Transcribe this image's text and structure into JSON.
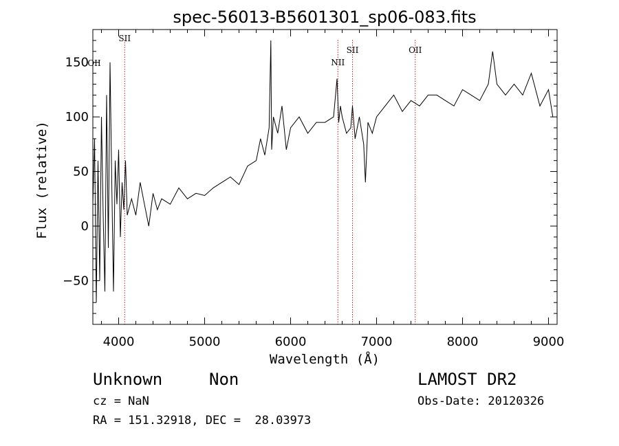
{
  "chart_data": {
    "type": "line",
    "title": "spec-56013-B5601301_sp06-083.fits",
    "xlabel": "Wavelength (Å)",
    "ylabel": "Flux (relative)",
    "xlim": [
      3700,
      9100
    ],
    "ylim": [
      -90,
      180
    ],
    "xticks": [
      4000,
      5000,
      6000,
      7000,
      8000,
      9000
    ],
    "yticks": [
      -50,
      0,
      50,
      100,
      150
    ],
    "xtick_labels": [
      "4000",
      "5000",
      "6000",
      "7000",
      "8000",
      "9000"
    ],
    "ytick_labels": [
      "−50",
      "0",
      "50",
      "100",
      "150"
    ],
    "grid": false,
    "series": [
      {
        "x": [
          3700,
          3720,
          3740,
          3760,
          3780,
          3800,
          3820,
          3840,
          3860,
          3880,
          3900,
          3920,
          3940,
          3960,
          3980,
          4000,
          4020,
          4040,
          4060,
          4080,
          4100,
          4150,
          4200,
          4250,
          4300,
          4350,
          4400,
          4450,
          4500,
          4600,
          4700,
          4800,
          4900,
          5000,
          5100,
          5200,
          5300,
          5400,
          5500,
          5600,
          5650,
          5700,
          5750,
          5770,
          5780,
          5800,
          5850,
          5900,
          5950,
          6000,
          6100,
          6200,
          6300,
          6400,
          6500,
          6540,
          6560,
          6580,
          6600,
          6650,
          6700,
          6720,
          6750,
          6800,
          6850,
          6870,
          6900,
          6950,
          7000,
          7100,
          7200,
          7300,
          7400,
          7500,
          7600,
          7700,
          7800,
          7900,
          8000,
          8100,
          8200,
          8300,
          8350,
          8400,
          8500,
          8600,
          8700,
          8800,
          8900,
          9000,
          9050
        ],
        "y": [
          20,
          80,
          -70,
          60,
          -50,
          100,
          10,
          -60,
          120,
          -20,
          150,
          40,
          -60,
          60,
          20,
          70,
          -10,
          40,
          15,
          60,
          10,
          25,
          10,
          40,
          20,
          0,
          30,
          15,
          25,
          20,
          35,
          25,
          30,
          28,
          35,
          40,
          45,
          38,
          55,
          60,
          80,
          65,
          90,
          170,
          70,
          100,
          85,
          110,
          70,
          90,
          100,
          85,
          95,
          95,
          100,
          135,
          95,
          110,
          100,
          85,
          90,
          110,
          80,
          100,
          75,
          40,
          95,
          85,
          100,
          110,
          120,
          105,
          115,
          110,
          120,
          120,
          115,
          110,
          125,
          120,
          115,
          130,
          160,
          130,
          120,
          130,
          120,
          140,
          110,
          125,
          100
        ]
      }
    ],
    "emission_lines": [
      {
        "label": "SII",
        "wavelength": 4070
      },
      {
        "label": "NII",
        "wavelength": 6550
      },
      {
        "label": "SII",
        "wavelength": 6720
      },
      {
        "label": "OII",
        "wavelength": 7450
      }
    ],
    "edge_label": "OII"
  },
  "info": {
    "class": "Unknown",
    "subclass": "Non",
    "cz": "cz = NaN",
    "radec": "RA = 151.32918, DEC =  28.03973",
    "survey": "LAMOST DR2",
    "obs_date": "Obs-Date: 20120326"
  }
}
